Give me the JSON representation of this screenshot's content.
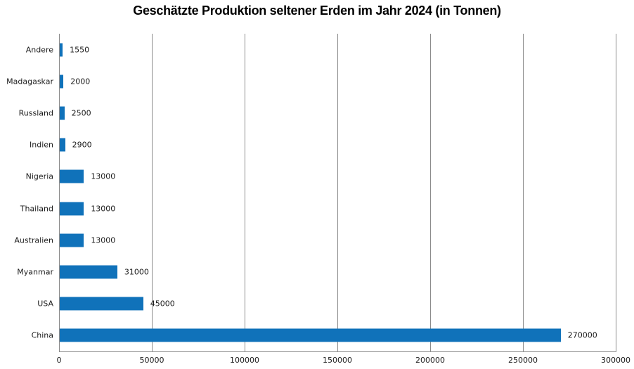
{
  "chart_data": {
    "type": "bar",
    "orientation": "horizontal",
    "title": "Geschätzte Produktion seltener Erden im Jahr 2024 (in Tonnen)",
    "categories": [
      "Andere",
      "Madagaskar",
      "Russland",
      "Indien",
      "Nigeria",
      "Thailand",
      "Australien",
      "Myanmar",
      "USA",
      "China"
    ],
    "values": [
      1550,
      2000,
      2500,
      2900,
      13000,
      13000,
      13000,
      31000,
      45000,
      270000
    ],
    "data_labels": [
      "1550",
      "2000",
      "2500",
      "2900",
      "13000",
      "13000",
      "13000",
      "31000",
      "45000",
      "270000"
    ],
    "xlabel": "",
    "ylabel": "",
    "xlim": [
      0,
      300000
    ],
    "xticks": [
      0,
      50000,
      100000,
      150000,
      200000,
      250000,
      300000
    ],
    "xtick_labels": [
      "0",
      "50000",
      "100000",
      "150000",
      "200000",
      "250000",
      "300000"
    ],
    "grid": "vertical",
    "legend": "none",
    "bar_color": "#1072ba",
    "grid_color": "#8c8c8c",
    "label_color": "#1a1a1a"
  }
}
